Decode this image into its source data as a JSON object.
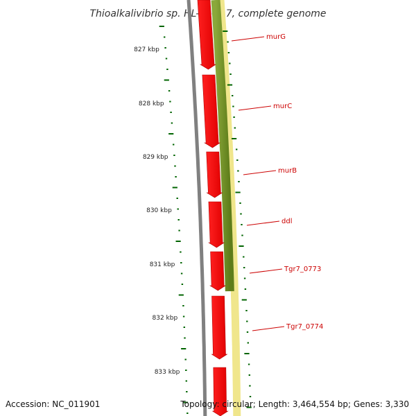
{
  "title": "Thioalkalivibrio sp. HL-EbGR7, complete genome",
  "accession": "Accession: NC_011901",
  "topology": "Topology: circular; Length: 3,464,554 bp; Genes: 3,330",
  "colors": {
    "backbone": "#808080",
    "cds": "#ff0000",
    "green_track": "#6b8e23",
    "yellow_track": "#f0e68c",
    "ticks": "#006400",
    "labels": "#cc0000"
  },
  "kbp_labels": [
    "827 kbp",
    "828 kbp",
    "829 kbp",
    "830 kbp",
    "831 kbp",
    "832 kbp",
    "833 kbp"
  ],
  "genes": [
    "murG",
    "murC",
    "murB",
    "ddl",
    "Tgr7_0773",
    "Tgr7_0774"
  ]
}
